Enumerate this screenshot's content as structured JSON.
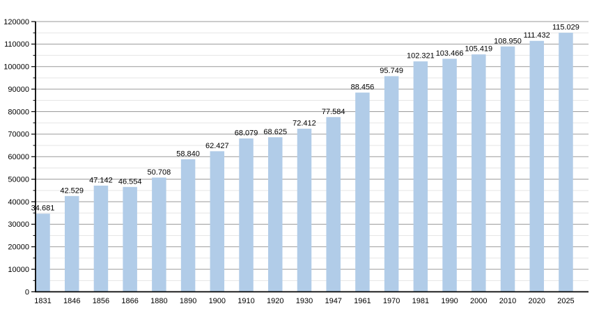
{
  "chart_data": {
    "type": "bar",
    "title": "",
    "xlabel": "",
    "ylabel": "",
    "categories": [
      "1831",
      "1846",
      "1856",
      "1866",
      "1880",
      "1890",
      "1900",
      "1910",
      "1920",
      "1930",
      "1947",
      "1961",
      "1970",
      "1981",
      "1990",
      "2000",
      "2010",
      "2020",
      "2025"
    ],
    "values": [
      34681,
      42529,
      47142,
      46554,
      50708,
      58840,
      62427,
      68079,
      68625,
      72412,
      77584,
      88456,
      95749,
      102321,
      103466,
      105419,
      108950,
      111432,
      115029
    ],
    "value_labels": [
      "34.681",
      "42.529",
      "47.142",
      "46.554",
      "50.708",
      "58.840",
      "62.427",
      "68.079",
      "68.625",
      "72.412",
      "77.584",
      "88.456",
      "95.749",
      "102.321",
      "103.466",
      "105.419",
      "108.950",
      "111.432",
      "115.029"
    ],
    "ylim": [
      0,
      120000
    ],
    "y_major_step": 10000,
    "y_minor_step": 5000,
    "y_tick_labels": [
      "0",
      "10000",
      "20000",
      "30000",
      "40000",
      "50000",
      "60000",
      "70000",
      "80000",
      "90000",
      "100000",
      "110000",
      "120000"
    ],
    "grid": "major-and-minor-horizontal",
    "legend_position": "none",
    "colors": {
      "bar_fill": "#b1cce8",
      "axis": "#000000",
      "major_grid": "#9a9a9a",
      "minor_grid": "#e5e5e5",
      "text": "#000000",
      "background": "#ffffff"
    }
  }
}
